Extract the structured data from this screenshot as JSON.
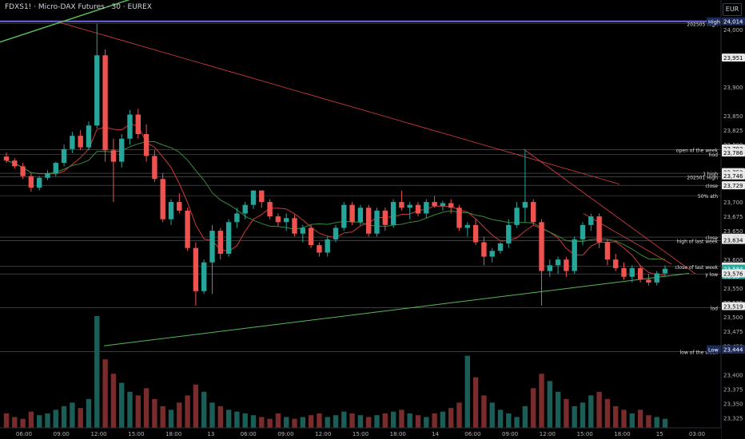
{
  "header": {
    "symbol": "FDXS1!",
    "name": "Micro-DAX Futures",
    "interval": "30",
    "exchange": "EUREX",
    "currency": "EUR"
  },
  "colors": {
    "background": "#000000",
    "up": "#26a69a",
    "down": "#ef5350",
    "volume_up": "#1b5e58",
    "volume_down": "#7a2b2b",
    "text": "#d1d4dc",
    "level_line": "#5d6068",
    "trend_down": "#e04040",
    "trend_up": "#58b858",
    "ma_red": "#d03838",
    "ma_green": "#3a8a3a",
    "high_line": "#7168e6",
    "last_price_bg": "#26a69a",
    "orange_tag": "#f0a030"
  },
  "chart_data": {
    "type": "candlestick",
    "y_axis": {
      "range": [
        23313,
        24040
      ],
      "ticks": [
        24000,
        23950,
        23900,
        23850,
        23825,
        23800,
        23750,
        23700,
        23675,
        23650,
        23600,
        23550,
        23525,
        23500,
        23475,
        23450,
        23400,
        23375,
        23350,
        23325
      ]
    },
    "x_axis": {
      "tick_labels": [
        "06:00",
        "09:00",
        "12:00",
        "15:00",
        "18:00",
        "13",
        "06:00",
        "09:00",
        "12:00",
        "15:00",
        "18:00",
        "14",
        "06:00",
        "09:00",
        "12:00",
        "15:00",
        "18:00",
        "15",
        "03:00"
      ]
    },
    "price_tags": [
      {
        "label": "High",
        "value": "24,014",
        "style": "high"
      },
      {
        "label": "",
        "value": "23,951",
        "style": "plain"
      },
      {
        "label": "",
        "value": "23,793",
        "style": "plain"
      },
      {
        "label": "",
        "value": "23,786",
        "style": "plain"
      },
      {
        "label": "",
        "value": "23,752",
        "style": "plain"
      },
      {
        "label": "",
        "value": "23,746",
        "style": "plain"
      },
      {
        "label": "",
        "value": "23,729",
        "style": "orange"
      },
      {
        "label": "",
        "value": "23,729",
        "style": "plain"
      },
      {
        "label": "",
        "value": "23,638",
        "style": "plain"
      },
      {
        "label": "",
        "value": "23,634",
        "style": "plain"
      },
      {
        "label": "",
        "value": "23,588",
        "style": "plain"
      },
      {
        "label": "",
        "value": "23,585",
        "style": "plain"
      },
      {
        "label": "",
        "value": "23,584",
        "style": "last",
        "countdown": "01:13"
      },
      {
        "label": "",
        "value": "23,576",
        "style": "plain"
      },
      {
        "label": "",
        "value": "23,519",
        "style": "plain"
      },
      {
        "label": "",
        "value": "23,444",
        "style": "plain"
      },
      {
        "label": "Low",
        "value": "23,444",
        "style": "low"
      }
    ],
    "level_labels": [
      {
        "text": "202505 High",
        "value": 24010
      },
      {
        "text": "open of the week",
        "value": 23791
      },
      {
        "text": "hod",
        "value": 23783
      },
      {
        "text": "1 high",
        "value": 23750
      },
      {
        "text": "202501 High",
        "value": 23744
      },
      {
        "text": "close",
        "value": 23729
      },
      {
        "text": "50% ath",
        "value": 23711
      },
      {
        "text": "close",
        "value": 23639
      },
      {
        "text": "high of last week",
        "value": 23633
      },
      {
        "text": "close of last week",
        "value": 23588
      },
      {
        "text": "y low",
        "value": 23575
      },
      {
        "text": "lod",
        "value": 23516
      },
      {
        "text": "low of the week",
        "value": 23440
      }
    ],
    "candles": [
      [
        23779,
        23786,
        23768,
        23772
      ],
      [
        23772,
        23776,
        23758,
        23762
      ],
      [
        23762,
        23768,
        23740,
        23745
      ],
      [
        23745,
        23750,
        23718,
        23725
      ],
      [
        23725,
        23745,
        23720,
        23742
      ],
      [
        23742,
        23755,
        23738,
        23750
      ],
      [
        23750,
        23770,
        23744,
        23768
      ],
      [
        23768,
        23800,
        23762,
        23792
      ],
      [
        23792,
        23822,
        23785,
        23815
      ],
      [
        23815,
        23825,
        23790,
        23795
      ],
      [
        23795,
        23840,
        23790,
        23833
      ],
      [
        23833,
        24010,
        23828,
        23955
      ],
      [
        23955,
        23965,
        23770,
        23790
      ],
      [
        23790,
        23810,
        23700,
        23770
      ],
      [
        23770,
        23818,
        23760,
        23810
      ],
      [
        23810,
        23860,
        23800,
        23852
      ],
      [
        23852,
        23862,
        23810,
        23818
      ],
      [
        23818,
        23835,
        23770,
        23780
      ],
      [
        23780,
        23790,
        23735,
        23740
      ],
      [
        23740,
        23750,
        23665,
        23670
      ],
      [
        23670,
        23705,
        23660,
        23700
      ],
      [
        23700,
        23715,
        23680,
        23685
      ],
      [
        23685,
        23690,
        23615,
        23620
      ],
      [
        23620,
        23630,
        23520,
        23545
      ],
      [
        23545,
        23600,
        23540,
        23595
      ],
      [
        23595,
        23660,
        23540,
        23650
      ],
      [
        23650,
        23655,
        23600,
        23610
      ],
      [
        23610,
        23670,
        23605,
        23665
      ],
      [
        23665,
        23690,
        23655,
        23680
      ],
      [
        23680,
        23700,
        23670,
        23695
      ],
      [
        23695,
        23720,
        23688,
        23720
      ],
      [
        23720,
        23720,
        23690,
        23700
      ],
      [
        23700,
        23705,
        23670,
        23675
      ],
      [
        23675,
        23680,
        23658,
        23665
      ],
      [
        23665,
        23680,
        23650,
        23672
      ],
      [
        23672,
        23678,
        23640,
        23645
      ],
      [
        23645,
        23660,
        23630,
        23655
      ],
      [
        23655,
        23660,
        23620,
        23625
      ],
      [
        23625,
        23630,
        23605,
        23612
      ],
      [
        23612,
        23640,
        23605,
        23635
      ],
      [
        23635,
        23660,
        23630,
        23655
      ],
      [
        23655,
        23700,
        23650,
        23695
      ],
      [
        23695,
        23700,
        23660,
        23665
      ],
      [
        23665,
        23695,
        23660,
        23690
      ],
      [
        23690,
        23695,
        23640,
        23645
      ],
      [
        23645,
        23690,
        23640,
        23685
      ],
      [
        23685,
        23690,
        23650,
        23660
      ],
      [
        23660,
        23705,
        23655,
        23700
      ],
      [
        23700,
        23720,
        23685,
        23690
      ],
      [
        23690,
        23700,
        23670,
        23695
      ],
      [
        23695,
        23700,
        23675,
        23680
      ],
      [
        23680,
        23705,
        23672,
        23700
      ],
      [
        23700,
        23710,
        23690,
        23693
      ],
      [
        23693,
        23702,
        23685,
        23698
      ],
      [
        23698,
        23705,
        23680,
        23690
      ],
      [
        23690,
        23695,
        23650,
        23655
      ],
      [
        23655,
        23665,
        23640,
        23660
      ],
      [
        23660,
        23670,
        23625,
        23630
      ],
      [
        23630,
        23640,
        23590,
        23605
      ],
      [
        23605,
        23620,
        23595,
        23615
      ],
      [
        23615,
        23630,
        23610,
        23628
      ],
      [
        23628,
        23670,
        23620,
        23660
      ],
      [
        23660,
        23700,
        23655,
        23690
      ],
      [
        23690,
        23790,
        23665,
        23700
      ],
      [
        23700,
        23705,
        23660,
        23665
      ],
      [
        23665,
        23670,
        23520,
        23580
      ],
      [
        23580,
        23600,
        23570,
        23590
      ],
      [
        23590,
        23605,
        23575,
        23600
      ],
      [
        23600,
        23605,
        23570,
        23580
      ],
      [
        23580,
        23640,
        23575,
        23635
      ],
      [
        23635,
        23665,
        23625,
        23660
      ],
      [
        23660,
        23680,
        23650,
        23675
      ],
      [
        23675,
        23680,
        23620,
        23630
      ],
      [
        23630,
        23635,
        23590,
        23600
      ],
      [
        23600,
        23610,
        23580,
        23585
      ],
      [
        23585,
        23595,
        23565,
        23570
      ],
      [
        23570,
        23590,
        23560,
        23585
      ],
      [
        23585,
        23590,
        23560,
        23565
      ],
      [
        23565,
        23575,
        23555,
        23560
      ],
      [
        23560,
        23580,
        23555,
        23576
      ],
      [
        23576,
        23590,
        23570,
        23584
      ]
    ],
    "volumes": [
      8,
      6,
      5,
      9,
      7,
      8,
      10,
      12,
      14,
      11,
      16,
      62,
      38,
      30,
      25,
      20,
      18,
      22,
      16,
      12,
      10,
      14,
      18,
      24,
      20,
      14,
      12,
      10,
      9,
      8,
      7,
      6,
      5,
      8,
      6,
      5,
      6,
      7,
      8,
      6,
      7,
      9,
      8,
      7,
      6,
      7,
      8,
      9,
      10,
      8,
      7,
      6,
      8,
      9,
      11,
      14,
      40,
      28,
      18,
      14,
      10,
      8,
      6,
      12,
      22,
      30,
      26,
      20,
      16,
      12,
      14,
      18,
      20,
      16,
      12,
      10,
      8,
      10,
      7,
      6,
      5
    ]
  }
}
